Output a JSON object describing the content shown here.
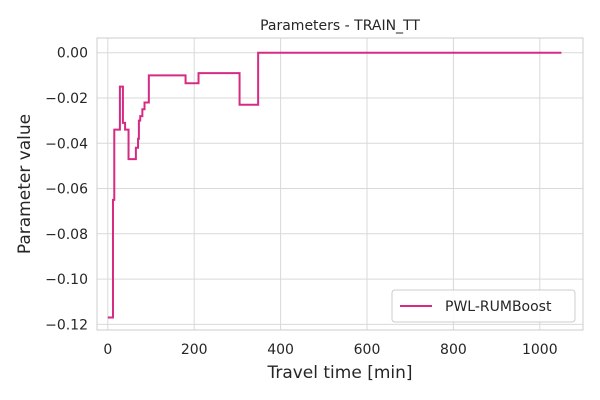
{
  "chart_data": {
    "type": "line",
    "title": "Parameters - TRAIN_TT",
    "xlabel": "Travel time [min]",
    "ylabel": "Parameter value",
    "xlim": [
      -25,
      1100
    ],
    "ylim": [
      -0.1225,
      0.0065
    ],
    "xticks": [
      0,
      200,
      400,
      600,
      800,
      1000
    ],
    "yticks": [
      -0.12,
      -0.1,
      -0.08,
      -0.06,
      -0.04,
      -0.02,
      0.0
    ],
    "xtick_labels": [
      "0",
      "200",
      "400",
      "600",
      "800",
      "1000"
    ],
    "ytick_labels": [
      "−0.12",
      "−0.10",
      "−0.08",
      "−0.06",
      "−0.04",
      "−0.02",
      "0.00"
    ],
    "grid": true,
    "legend_position": "lower right",
    "step_type": "post",
    "series": [
      {
        "name": "PWL-RUMBoost",
        "color": "#d62b83",
        "x": [
          0,
          12,
          15,
          20,
          28,
          35,
          40,
          48,
          65,
          70,
          72,
          75,
          80,
          85,
          90,
          95,
          180,
          210,
          305,
          348,
          350,
          1050
        ],
        "y": [
          -0.117,
          -0.065,
          -0.034,
          -0.034,
          -0.015,
          -0.031,
          -0.034,
          -0.047,
          -0.042,
          -0.038,
          -0.03,
          -0.028,
          -0.025,
          -0.022,
          -0.022,
          -0.01,
          -0.0135,
          -0.009,
          -0.023,
          0.0,
          0.0,
          0.0
        ]
      }
    ]
  }
}
